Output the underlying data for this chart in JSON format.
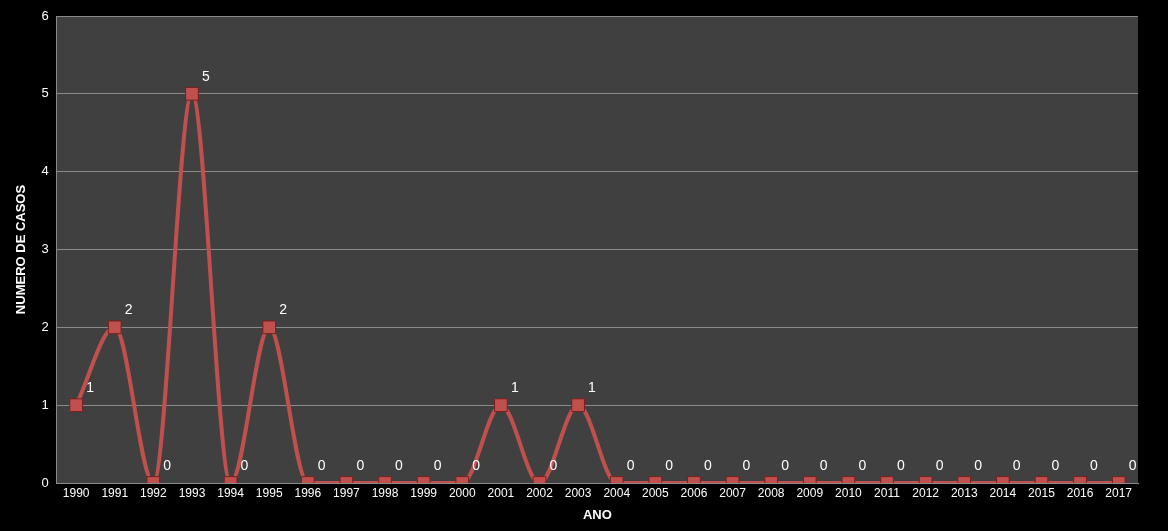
{
  "chart_data": {
    "type": "line",
    "xlabel": "ANO",
    "ylabel": "NUMERO DE CASOS",
    "categories": [
      "1990",
      "1991",
      "1992",
      "1993",
      "1994",
      "1995",
      "1996",
      "1997",
      "1998",
      "1999",
      "2000",
      "2001",
      "2002",
      "2003",
      "2004",
      "2005",
      "2006",
      "2007",
      "2008",
      "2009",
      "2010",
      "2011",
      "2012",
      "2013",
      "2014",
      "2015",
      "2016",
      "2017"
    ],
    "series": [
      {
        "color": "#c0504d",
        "values": [
          1,
          2,
          0,
          5,
          0,
          2,
          0,
          0,
          0,
          0,
          0,
          1,
          0,
          1,
          0,
          0,
          0,
          0,
          0,
          0,
          0,
          0,
          0,
          0,
          0,
          0,
          0,
          0
        ]
      }
    ],
    "ylim": [
      0,
      6
    ],
    "yticks": [
      0,
      1,
      2,
      3,
      4,
      5,
      6
    ],
    "grid": "y",
    "marker": "square",
    "line_style": "solid",
    "data_labels": true
  }
}
